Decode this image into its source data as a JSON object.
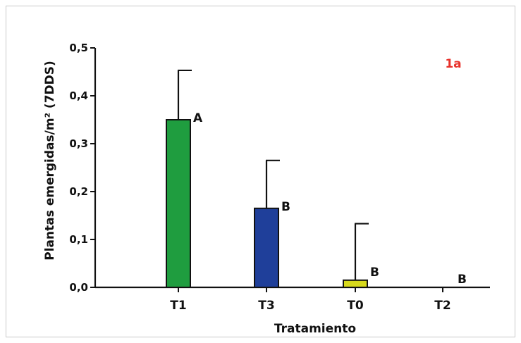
{
  "chart_data": {
    "type": "bar",
    "panel_label": "1a",
    "panel_label_color": "#e8312a",
    "xlabel": "Tratamiento",
    "ylabel": "Plantas emergidas/m² (7DDS)",
    "ylim": [
      0,
      0.5
    ],
    "yticks": [
      0.0,
      0.1,
      0.2,
      0.3,
      0.4,
      0.5
    ],
    "ytick_labels": [
      "0,0",
      "0,1",
      "0,2",
      "0,3",
      "0,4",
      "0,5"
    ],
    "categories": [
      "T1",
      "T3",
      "T0",
      "T2"
    ],
    "values": [
      0.35,
      0.165,
      0.015,
      0.0
    ],
    "errors": [
      0.103,
      0.1,
      0.118,
      0.0
    ],
    "significance": [
      "A",
      "B",
      "B",
      "B"
    ],
    "colors": [
      "#1f9d3f",
      "#1f3f9a",
      "#d7d91c",
      "#d7d91c"
    ]
  }
}
